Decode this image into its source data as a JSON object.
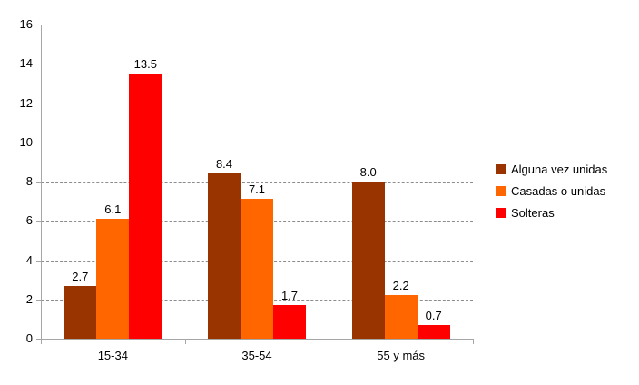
{
  "chart_data": {
    "type": "bar",
    "title": "",
    "xlabel": "",
    "ylabel": "",
    "categories": [
      "15-34",
      "35-54",
      "55 y más"
    ],
    "series": [
      {
        "name": "Alguna vez unidas",
        "color": "#993300",
        "values": [
          2.7,
          8.4,
          8.0
        ]
      },
      {
        "name": "Casadas o unidas",
        "color": "#FF6600",
        "values": [
          6.1,
          7.1,
          2.2
        ]
      },
      {
        "name": "Solteras",
        "color": "#FF0000",
        "values": [
          13.5,
          1.7,
          0.7
        ]
      }
    ],
    "value_labels": [
      [
        "2.7",
        "8.4",
        "8.0"
      ],
      [
        "6.1",
        "7.1",
        "2.2"
      ],
      [
        "13.5",
        "1.7",
        "0.7"
      ]
    ],
    "ylim": [
      0,
      16
    ],
    "yticks": [
      0,
      2,
      4,
      6,
      8,
      10,
      12,
      14,
      16
    ],
    "grid": "horizontal-dashed",
    "legend_position": "right-middle"
  },
  "style": {
    "axis_color": "#a6a6a6",
    "gridline_color": "#8c8c8c",
    "text_color": "#000000",
    "background": "#ffffff"
  }
}
